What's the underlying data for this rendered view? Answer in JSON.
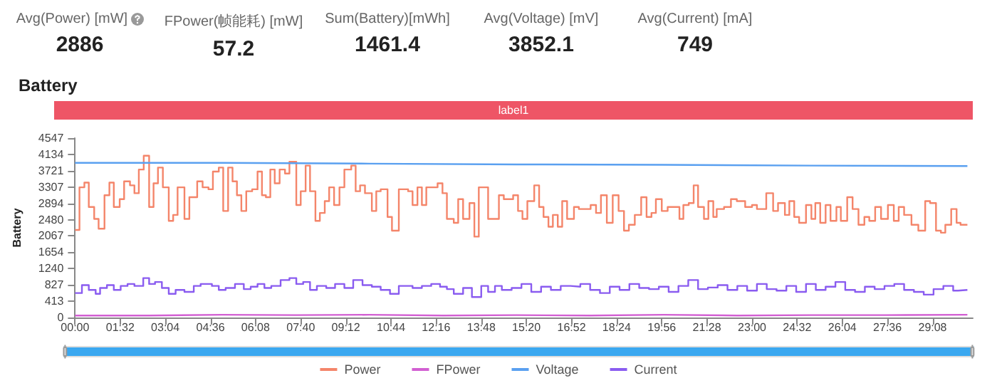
{
  "chart_data": [
    {
      "type": "other",
      "data_labels": true,
      "categories": [
        "Avg(Power) [mW]",
        "FPower(帧能耗) [mW]",
        "Sum(Battery)[mWh]",
        "Avg(Voltage) [mV]",
        "Avg(Current) [mA]"
      ],
      "values": [
        2886,
        57.2,
        1461.4,
        3852.1,
        749
      ]
    },
    {
      "type": "step",
      "title": "Battery",
      "ylabel": "Battery",
      "legend": "bottom",
      "marker": "none",
      "xlim": [
        0,
        1830
      ],
      "ylim": [
        0,
        4547
      ],
      "xticks": [
        {
          "value": 0,
          "label": "00:00"
        },
        {
          "value": 92,
          "label": "01:32"
        },
        {
          "value": 184,
          "label": "03:04"
        },
        {
          "value": 276,
          "label": "04:36"
        },
        {
          "value": 368,
          "label": "06:08"
        },
        {
          "value": 460,
          "label": "07:40"
        },
        {
          "value": 552,
          "label": "09:12"
        },
        {
          "value": 644,
          "label": "10:44"
        },
        {
          "value": 736,
          "label": "12:16"
        },
        {
          "value": 828,
          "label": "13:48"
        },
        {
          "value": 920,
          "label": "15:20"
        },
        {
          "value": 1012,
          "label": "16:52"
        },
        {
          "value": 1104,
          "label": "18:24"
        },
        {
          "value": 1196,
          "label": "19:56"
        },
        {
          "value": 1288,
          "label": "21:28"
        },
        {
          "value": 1380,
          "label": "23:00"
        },
        {
          "value": 1472,
          "label": "24:32"
        },
        {
          "value": 1564,
          "label": "26:04"
        },
        {
          "value": 1656,
          "label": "27:36"
        },
        {
          "value": 1748,
          "label": "29:08"
        }
      ],
      "yticks": [
        0,
        413,
        827,
        1240,
        1654,
        2067,
        2480,
        2894,
        3307,
        3721,
        4134,
        4547
      ],
      "bands": [
        {
          "axis": "x",
          "from": 0,
          "to": 1830,
          "label": "label1"
        }
      ],
      "series": [
        {
          "name": "Power",
          "color": "#f4856a",
          "x": [
            0,
            9,
            19,
            28,
            39,
            48,
            60,
            70,
            79,
            91,
            100,
            112,
            121,
            130,
            140,
            151,
            160,
            169,
            179,
            191,
            200,
            209,
            223,
            233,
            249,
            260,
            272,
            281,
            293,
            302,
            312,
            321,
            330,
            339,
            349,
            361,
            372,
            381,
            389,
            398,
            407,
            417,
            428,
            437,
            451,
            460,
            470,
            479,
            490,
            499,
            509,
            518,
            528,
            539,
            549,
            563,
            572,
            581,
            591,
            605,
            614,
            623,
            637,
            646,
            660,
            679,
            688,
            698,
            707,
            716,
            725,
            739,
            749,
            758,
            772,
            781,
            791,
            804,
            814,
            823,
            842,
            864,
            874,
            893,
            903,
            912,
            922,
            936,
            946,
            955,
            965,
            974,
            984,
            993,
            1003,
            1017,
            1027,
            1051,
            1062,
            1072,
            1084,
            1096,
            1108,
            1119,
            1129,
            1141,
            1154,
            1165,
            1175,
            1184,
            1196,
            1208,
            1232,
            1240,
            1251,
            1261,
            1270,
            1282,
            1291,
            1301,
            1308,
            1323,
            1337,
            1349,
            1366,
            1380,
            1390,
            1409,
            1423,
            1433,
            1447,
            1456,
            1466,
            1476,
            1490,
            1501,
            1509,
            1519,
            1530,
            1540,
            1552,
            1561,
            1574,
            1585,
            1597,
            1609,
            1619,
            1631,
            1643,
            1657,
            1669,
            1679,
            1690,
            1705,
            1719,
            1733,
            1743,
            1755,
            1765,
            1774,
            1786,
            1797,
            1805,
            1819
          ],
          "values": [
            2220,
            3300,
            3420,
            2800,
            2500,
            2250,
            3100,
            3420,
            2800,
            3000,
            3450,
            3350,
            3150,
            3750,
            4100,
            2800,
            3400,
            3800,
            3300,
            2450,
            2600,
            3300,
            2500,
            3050,
            3450,
            3300,
            3250,
            3700,
            3800,
            2700,
            3800,
            3450,
            3100,
            2700,
            3200,
            3250,
            3700,
            3100,
            3050,
            3750,
            3400,
            3750,
            3650,
            3950,
            2850,
            3200,
            3850,
            3200,
            2450,
            2650,
            2950,
            3300,
            2850,
            3300,
            3750,
            3850,
            3200,
            3350,
            3150,
            2700,
            3200,
            3250,
            2550,
            2200,
            3250,
            3200,
            2850,
            3300,
            2850,
            3300,
            3300,
            3400,
            3150,
            2500,
            2400,
            3000,
            2500,
            2900,
            2050,
            3300,
            2500,
            3100,
            3000,
            3100,
            2700,
            2500,
            2950,
            3350,
            2800,
            2550,
            2300,
            2600,
            2300,
            2950,
            2500,
            2800,
            2750,
            2850,
            2650,
            3100,
            2400,
            3100,
            2700,
            2200,
            2350,
            2600,
            3050,
            2550,
            2650,
            3000,
            2700,
            2800,
            2500,
            2850,
            2900,
            3350,
            2800,
            2500,
            2950,
            2550,
            2750,
            2800,
            3000,
            2950,
            2800,
            2850,
            2750,
            3150,
            2700,
            2900,
            2600,
            2950,
            2550,
            2400,
            2850,
            2500,
            2900,
            2400,
            2850,
            2450,
            2800,
            2450,
            3050,
            2750,
            2350,
            2550,
            2450,
            2800,
            2500,
            2850,
            2450,
            2800,
            2600,
            2350,
            2200,
            2950,
            2900,
            2200,
            2150,
            2350,
            2750,
            2400,
            2350,
            2350
          ]
        },
        {
          "name": "FPower",
          "color": "#d25fd2",
          "x": [
            0,
            150,
            300,
            450,
            600,
            750,
            900,
            1050,
            1200,
            1350,
            1500,
            1650,
            1819
          ],
          "values": [
            50,
            70,
            60,
            70,
            50,
            60,
            50,
            70,
            50,
            60,
            60,
            70,
            60
          ]
        },
        {
          "name": "Voltage",
          "color": "#5aa0f0",
          "x": [
            0,
            300,
            600,
            900,
            1200,
            1500,
            1819
          ],
          "values": [
            3920,
            3900,
            3880,
            3870,
            3850,
            3840,
            3830
          ]
        },
        {
          "name": "Current",
          "color": "#8a5cf0",
          "x": [
            0,
            14,
            28,
            42,
            51,
            65,
            79,
            93,
            107,
            121,
            139,
            151,
            163,
            177,
            191,
            205,
            223,
            242,
            256,
            279,
            293,
            307,
            326,
            344,
            358,
            372,
            386,
            400,
            419,
            437,
            451,
            465,
            479,
            493,
            512,
            530,
            549,
            567,
            586,
            605,
            623,
            642,
            660,
            688,
            707,
            726,
            744,
            758,
            772,
            791,
            809,
            828,
            842,
            856,
            870,
            890,
            910,
            930,
            950,
            970,
            990,
            1010,
            1030,
            1050,
            1070,
            1090,
            1110,
            1130,
            1150,
            1170,
            1190,
            1210,
            1230,
            1250,
            1270,
            1290,
            1310,
            1330,
            1350,
            1370,
            1390,
            1410,
            1430,
            1450,
            1470,
            1490,
            1510,
            1530,
            1550,
            1570,
            1590,
            1610,
            1630,
            1650,
            1670,
            1690,
            1710,
            1730,
            1750,
            1770,
            1790,
            1800,
            1819
          ],
          "values": [
            620,
            820,
            700,
            600,
            750,
            820,
            700,
            800,
            850,
            800,
            1000,
            850,
            900,
            750,
            600,
            700,
            650,
            800,
            850,
            800,
            700,
            750,
            850,
            720,
            780,
            850,
            750,
            800,
            950,
            1000,
            850,
            900,
            700,
            800,
            750,
            850,
            750,
            950,
            820,
            780,
            700,
            600,
            800,
            750,
            800,
            850,
            780,
            720,
            600,
            750,
            520,
            800,
            650,
            800,
            700,
            750,
            850,
            650,
            780,
            700,
            800,
            780,
            850,
            700,
            620,
            780,
            700,
            850,
            750,
            720,
            780,
            650,
            800,
            950,
            720,
            760,
            820,
            700,
            800,
            680,
            850,
            720,
            680,
            800,
            650,
            850,
            700,
            780,
            900,
            700,
            650,
            780,
            720,
            800,
            850,
            700,
            650,
            580,
            720,
            800,
            680,
            700,
            700
          ]
        }
      ]
    }
  ]
}
